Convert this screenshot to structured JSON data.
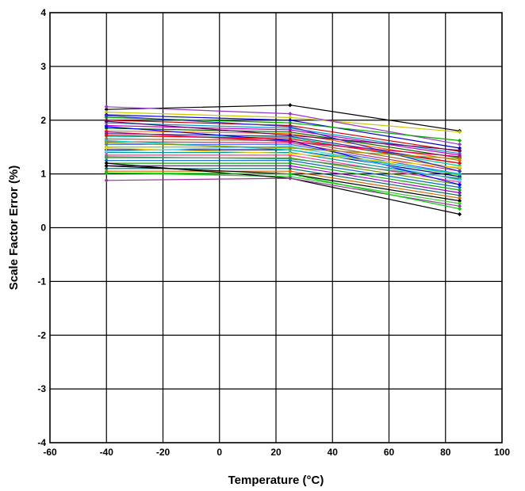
{
  "chart_data": {
    "type": "line",
    "title": "",
    "xlabel": "Temperature (°C)",
    "ylabel": "Scale Factor Error (%)",
    "xlim": [
      -60,
      100
    ],
    "ylim": [
      -4,
      4
    ],
    "xticks": [
      -60,
      -40,
      -20,
      0,
      20,
      40,
      60,
      80,
      100
    ],
    "yticks": [
      -4,
      -3,
      -2,
      -1,
      0,
      1,
      2,
      3,
      4
    ],
    "grid": true,
    "legend": "none",
    "x": [
      -40,
      25,
      85
    ],
    "series": [
      {
        "color": "#000000",
        "values": [
          2.2,
          2.28,
          1.8
        ]
      },
      {
        "color": "#c8c800",
        "values": [
          2.15,
          2.05,
          1.78
        ]
      },
      {
        "color": "#9933cc",
        "values": [
          2.25,
          2.12,
          1.55
        ]
      },
      {
        "color": "#0000cc",
        "values": [
          2.1,
          2.0,
          1.48
        ]
      },
      {
        "color": "#00aa00",
        "values": [
          2.05,
          1.95,
          1.62
        ]
      },
      {
        "color": "#cc0000",
        "values": [
          2.0,
          1.9,
          1.42
        ]
      },
      {
        "color": "#0099cc",
        "values": [
          1.95,
          1.85,
          1.38
        ]
      },
      {
        "color": "#cc00cc",
        "values": [
          1.9,
          1.82,
          1.35
        ]
      },
      {
        "color": "#006600",
        "values": [
          1.85,
          1.78,
          1.3
        ]
      },
      {
        "color": "#ff6600",
        "values": [
          1.8,
          1.75,
          1.25
        ]
      },
      {
        "color": "#333399",
        "values": [
          1.75,
          1.7,
          1.2
        ]
      },
      {
        "color": "#00cc99",
        "values": [
          1.7,
          1.68,
          1.15
        ]
      },
      {
        "color": "#996633",
        "values": [
          1.65,
          1.62,
          1.1
        ]
      },
      {
        "color": "#cc3366",
        "values": [
          1.6,
          1.58,
          1.05
        ]
      },
      {
        "color": "#3366ff",
        "values": [
          1.55,
          1.55,
          1.0
        ]
      },
      {
        "color": "#66cc00",
        "values": [
          1.5,
          1.5,
          0.98
        ]
      },
      {
        "color": "#000099",
        "values": [
          1.45,
          1.45,
          0.95
        ]
      },
      {
        "color": "#009999",
        "values": [
          1.4,
          1.4,
          0.9
        ]
      },
      {
        "color": "#ff3399",
        "values": [
          1.35,
          1.35,
          0.85
        ]
      },
      {
        "color": "#669900",
        "values": [
          1.3,
          1.3,
          0.8
        ]
      },
      {
        "color": "#0066cc",
        "values": [
          1.25,
          1.25,
          0.75
        ]
      },
      {
        "color": "#00aa00",
        "values": [
          1.2,
          1.2,
          0.7
        ]
      },
      {
        "color": "#9900cc",
        "values": [
          1.15,
          1.15,
          0.65
        ]
      },
      {
        "color": "#006666",
        "values": [
          1.1,
          1.1,
          0.6
        ]
      },
      {
        "color": "#cc6600",
        "values": [
          1.05,
          1.05,
          0.55
        ]
      },
      {
        "color": "#000000",
        "values": [
          1.15,
          1.0,
          0.5
        ]
      },
      {
        "color": "#33cc33",
        "values": [
          1.02,
          0.95,
          0.45
        ]
      },
      {
        "color": "#000000",
        "values": [
          1.2,
          0.92,
          0.25
        ]
      },
      {
        "color": "#993399",
        "values": [
          0.88,
          0.92,
          0.4
        ]
      },
      {
        "color": "#00cc00",
        "values": [
          1.02,
          1.0,
          0.35
        ]
      },
      {
        "color": "#0000ff",
        "values": [
          1.88,
          1.62,
          0.8
        ]
      },
      {
        "color": "#ff0000",
        "values": [
          1.72,
          1.65,
          1.2
        ]
      },
      {
        "color": "#00cccc",
        "values": [
          1.62,
          1.45,
          1.0
        ]
      },
      {
        "color": "#ffcc00",
        "values": [
          1.48,
          1.38,
          1.12
        ]
      },
      {
        "color": "#660066",
        "values": [
          1.98,
          1.72,
          1.44
        ]
      },
      {
        "color": "#339966",
        "values": [
          1.32,
          1.28,
          0.92
        ]
      },
      {
        "color": "#cc0066",
        "values": [
          1.78,
          1.6,
          1.32
        ]
      },
      {
        "color": "#3333cc",
        "values": [
          2.08,
          1.88,
          1.05
        ]
      },
      {
        "color": "#66ccff",
        "values": [
          1.42,
          1.52,
          0.88
        ]
      },
      {
        "color": "#999900",
        "values": [
          1.58,
          1.48,
          1.28
        ]
      }
    ]
  }
}
